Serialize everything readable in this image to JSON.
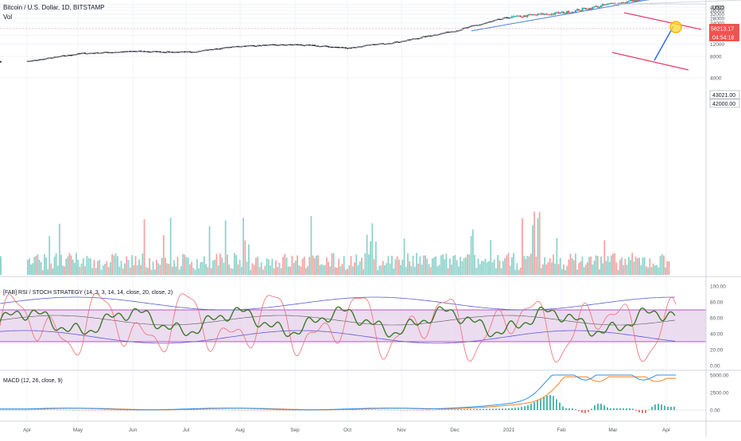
{
  "header": {
    "title": "Bitcoin / U.S. Dollar, 1D, BITSTAMP",
    "volume_label": "Vol",
    "currency": "USD"
  },
  "price_tags": {
    "last_price": "58213.17",
    "countdown": "04:54:18",
    "level_1": "43021.00",
    "level_2": "42000.00"
  },
  "indicators": {
    "rsi_label": "[FAB] RSI / STOCH STRATEGY (14, 3, 3, 14, 14, close, 20, close, 2)",
    "macd_label": "MACD (12, 26, close, 9)"
  },
  "colors": {
    "candle_up": "#26a69a",
    "candle_down": "#ef5350",
    "trend_line": "#4a7ee0",
    "channel_line": "#ef3b6b",
    "rsi_band": "#e4cde9",
    "macd_line": "#2196f3",
    "signal_line": "#ff7f27"
  },
  "chart_data": [
    {
      "type": "candlestick",
      "title": "Bitcoin / U.S. Dollar, 1D, BITSTAMP",
      "x_ticks": [
        "Apr",
        "May",
        "Jun",
        "Jul",
        "Aug",
        "Sep",
        "Oct",
        "Nov",
        "Dec",
        "2021",
        "Feb",
        "Mar",
        "Apr"
      ],
      "y_ticks": [
        4000,
        8000,
        12000,
        16000,
        20000,
        24000,
        28000,
        32000,
        36000,
        40000,
        44000,
        48000,
        52000,
        56000,
        60000,
        64000
      ],
      "ylim": [
        2000,
        65500
      ],
      "scale": "log",
      "last_price": 58213.17,
      "marked_levels": [
        43021,
        42000
      ],
      "close_series": {
        "months": [
          0,
          1,
          2,
          3,
          4,
          5,
          6,
          7,
          8,
          9,
          10,
          11,
          12
        ],
        "values": [
          6800,
          8800,
          9500,
          9200,
          11300,
          11800,
          10600,
          13200,
          18700,
          29000,
          33100,
          45000,
          58200
        ]
      }
    },
    {
      "type": "line",
      "title": "[FAB] RSI / STOCH STRATEGY (14, 3, 3, 14, 14, close, 20, close, 2)",
      "y_ticks": [
        0,
        20,
        40,
        60,
        80,
        100
      ],
      "ylim": [
        0,
        100
      ],
      "band": [
        30,
        70
      ]
    },
    {
      "type": "line",
      "title": "MACD (12, 26, close, 9)",
      "y_ticks": [
        0,
        2500,
        5000
      ],
      "ylim": [
        -1800,
        5200
      ],
      "peaks": [
        {
          "month": 10.0,
          "macd": 4200
        },
        {
          "month": 11.0,
          "macd": 5000
        },
        {
          "month": 12.0,
          "macd": 3000
        }
      ]
    }
  ]
}
